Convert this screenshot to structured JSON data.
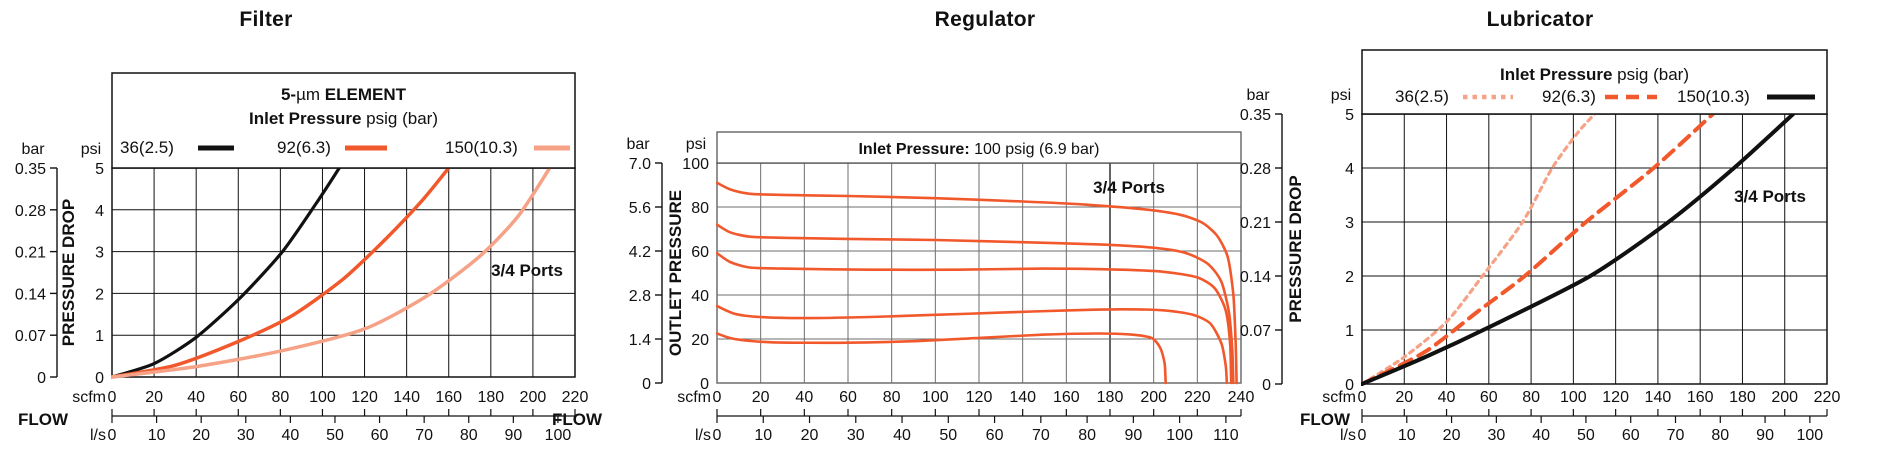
{
  "page": {
    "background": "#ffffff"
  },
  "colors": {
    "black": "#111111",
    "orange": "#F1582C",
    "salmon": "#F6A287",
    "grid_black": "#111111",
    "grid_gray": "#6E6E6E"
  },
  "chart_data": [
    {
      "type": "line",
      "title": "Filter",
      "legend": {
        "position": "top-box",
        "header_parts": [
          [
            "5-",
            "bold"
          ],
          [
            "µm",
            "regular"
          ],
          [
            " ELEMENT",
            "bold"
          ]
        ],
        "subheader_parts": [
          [
            "Inlet Pressure",
            "bold"
          ],
          [
            " psig (bar)",
            "regular"
          ]
        ],
        "entries": [
          {
            "label": "36(2.5)",
            "color": "#111111",
            "dash": "solid"
          },
          {
            "label": "92(6.3)",
            "color": "#F1582C",
            "dash": "solid"
          },
          {
            "label": "150(10.3)",
            "color": "#F6A287",
            "dash": "solid"
          }
        ]
      },
      "annotation": "3/4 Ports",
      "ylabel": "PRESSURE DROP",
      "y_left": {
        "unit": "bar",
        "ticks": [
          "0.35",
          "0.28",
          "0.21",
          "0.14",
          "0.07",
          "0"
        ]
      },
      "y_right": {
        "unit": "psi",
        "ticks": [
          "5",
          "4",
          "3",
          "2",
          "1",
          "0"
        ],
        "max": 5
      },
      "x": {
        "label": "FLOW",
        "unit_top": "scfm",
        "unit_bottom": "l/s",
        "ticks_scfm": [
          0,
          20,
          40,
          60,
          80,
          100,
          120,
          140,
          160,
          180,
          200,
          220
        ],
        "ticks_ls": [
          0,
          10,
          20,
          30,
          40,
          50,
          60,
          70,
          80,
          90,
          100
        ],
        "max_scfm": 220
      },
      "grid": {
        "color": "#111111"
      },
      "series": [
        {
          "name": "36(2.5)",
          "color": "#111111",
          "dash": "solid",
          "points": [
            [
              0,
              0
            ],
            [
              20,
              0.32
            ],
            [
              40,
              0.95
            ],
            [
              61,
              1.9
            ],
            [
              81,
              3.0
            ],
            [
              97,
              4.15
            ],
            [
              108,
              5.0
            ]
          ]
        },
        {
          "name": "92(6.3)",
          "color": "#F1582C",
          "dash": "solid",
          "points": [
            [
              0,
              0
            ],
            [
              30,
              0.28
            ],
            [
              60,
              0.85
            ],
            [
              85,
              1.45
            ],
            [
              110,
              2.35
            ],
            [
              130,
              3.3
            ],
            [
              147,
              4.2
            ],
            [
              160,
              5.0
            ]
          ]
        },
        {
          "name": "150(10.3)",
          "color": "#F6A287",
          "dash": "solid",
          "points": [
            [
              0,
              0
            ],
            [
              40,
              0.25
            ],
            [
              80,
              0.62
            ],
            [
              120,
              1.15
            ],
            [
              150,
              1.95
            ],
            [
              175,
              2.9
            ],
            [
              193,
              3.85
            ],
            [
              208,
              5.0
            ]
          ]
        }
      ]
    },
    {
      "type": "line",
      "title": "Regulator",
      "legend": {
        "position": "banner",
        "banner_parts": [
          [
            "Inlet Pressure:",
            "bold"
          ],
          [
            " 100 psig (6.9 bar)",
            "regular"
          ]
        ]
      },
      "annotation": "3/4 Ports",
      "ylabel": "OUTLET PRESSURE",
      "y_left": {
        "unit": "bar",
        "ticks": [
          "7.0",
          "5.6",
          "4.2",
          "2.8",
          "1.4",
          "0"
        ]
      },
      "y_right": {
        "unit": "psi",
        "ticks": [
          "100",
          "80",
          "60",
          "40",
          "20",
          "0"
        ],
        "max": 100
      },
      "x": {
        "label": "FLOW",
        "unit_top": "scfm",
        "unit_bottom": "l/s",
        "ticks_scfm": [
          0,
          20,
          40,
          60,
          80,
          100,
          120,
          140,
          160,
          180,
          200,
          220,
          240
        ],
        "ticks_ls": [
          0,
          10,
          20,
          30,
          40,
          50,
          60,
          70,
          80,
          90,
          100,
          110
        ],
        "max_scfm": 240
      },
      "grid": {
        "color": "#6E6E6E",
        "emphasized_x": 180
      },
      "series": [
        {
          "name": "curve-1",
          "color": "#F1582C",
          "dash": "solid",
          "points": [
            [
              0,
              91
            ],
            [
              6,
              88
            ],
            [
              15,
              86
            ],
            [
              30,
              85.5
            ],
            [
              60,
              85
            ],
            [
              100,
              84
            ],
            [
              140,
              82.5
            ],
            [
              170,
              81
            ],
            [
              195,
              79
            ],
            [
              212,
              76.5
            ],
            [
              222,
              73
            ],
            [
              229,
              67
            ],
            [
              234,
              57
            ],
            [
              236.5,
              40
            ],
            [
              237.5,
              20
            ],
            [
              238,
              0
            ]
          ]
        },
        {
          "name": "curve-2",
          "color": "#F1582C",
          "dash": "solid",
          "points": [
            [
              0,
              72
            ],
            [
              6,
              68.5
            ],
            [
              15,
              66.5
            ],
            [
              30,
              66
            ],
            [
              60,
              65.5
            ],
            [
              100,
              65
            ],
            [
              140,
              64
            ],
            [
              175,
              63
            ],
            [
              200,
              61.5
            ],
            [
              215,
              59
            ],
            [
              225,
              54
            ],
            [
              231,
              46
            ],
            [
              234.5,
              32
            ],
            [
              236,
              15
            ],
            [
              236.5,
              0
            ]
          ]
        },
        {
          "name": "curve-3",
          "color": "#F1582C",
          "dash": "solid",
          "points": [
            [
              0,
              59
            ],
            [
              6,
              55
            ],
            [
              15,
              52.5
            ],
            [
              30,
              52
            ],
            [
              70,
              51.5
            ],
            [
              110,
              51.5
            ],
            [
              150,
              52
            ],
            [
              185,
              51.5
            ],
            [
              205,
              50.5
            ],
            [
              220,
              48
            ],
            [
              228,
              43
            ],
            [
              233,
              33
            ],
            [
              235,
              18
            ],
            [
              235.5,
              0
            ]
          ]
        },
        {
          "name": "curve-4",
          "color": "#F1582C",
          "dash": "solid",
          "points": [
            [
              0,
              35
            ],
            [
              8,
              31.5
            ],
            [
              20,
              30
            ],
            [
              40,
              29.5
            ],
            [
              70,
              30
            ],
            [
              100,
              31
            ],
            [
              130,
              32
            ],
            [
              160,
              33
            ],
            [
              185,
              33.5
            ],
            [
              205,
              33
            ],
            [
              218,
              31
            ],
            [
              226,
              27
            ],
            [
              231,
              18
            ],
            [
              233,
              8
            ],
            [
              233.5,
              0
            ]
          ]
        },
        {
          "name": "curve-5",
          "color": "#F1582C",
          "dash": "solid",
          "points": [
            [
              0,
              22.5
            ],
            [
              8,
              20
            ],
            [
              25,
              18.5
            ],
            [
              60,
              18.3
            ],
            [
              90,
              19
            ],
            [
              120,
              20.5
            ],
            [
              150,
              22
            ],
            [
              175,
              22.5
            ],
            [
              190,
              22
            ],
            [
              199,
              20.5
            ],
            [
              203,
              16
            ],
            [
              205,
              9
            ],
            [
              205.5,
              0
            ]
          ]
        }
      ]
    },
    {
      "type": "line",
      "title": "Lubricator",
      "legend": {
        "position": "top-box",
        "header_parts": [
          [
            "Inlet Pressure",
            "bold"
          ],
          [
            " psig (bar)",
            "regular"
          ]
        ],
        "entries": [
          {
            "label": "36(2.5)",
            "color": "#F6A287",
            "dash": "dotted"
          },
          {
            "label": "92(6.3)",
            "color": "#F1582C",
            "dash": "dashed"
          },
          {
            "label": "150(10.3)",
            "color": "#111111",
            "dash": "solid"
          }
        ]
      },
      "annotation": "3/4 Ports",
      "ylabel": "PRESSURE DROP",
      "y_left": {
        "unit": "bar",
        "ticks": [
          "0.35",
          "0.28",
          "0.21",
          "0.14",
          "0.07",
          "0"
        ]
      },
      "y_right": {
        "unit": "psi",
        "ticks": [
          "5",
          "4",
          "3",
          "2",
          "1",
          "0"
        ],
        "max": 5
      },
      "x": {
        "label": "FLOW",
        "unit_top": "scfm",
        "unit_bottom": "l/s",
        "ticks_scfm": [
          0,
          20,
          40,
          60,
          80,
          100,
          120,
          140,
          160,
          180,
          200,
          220
        ],
        "ticks_ls": [
          0,
          10,
          20,
          30,
          40,
          50,
          60,
          70,
          80,
          90,
          100
        ],
        "max_scfm": 220
      },
      "grid": {
        "color": "#111111"
      },
      "series": [
        {
          "name": "36(2.5)",
          "color": "#F6A287",
          "dash": "dotted",
          "points": [
            [
              0,
              0
            ],
            [
              20,
              0.5
            ],
            [
              40,
              1.15
            ],
            [
              57,
              2.0
            ],
            [
              76,
              3.0
            ],
            [
              90,
              4.0
            ],
            [
              102,
              4.65
            ],
            [
              110,
              5.0
            ]
          ]
        },
        {
          "name": "92(6.3)",
          "color": "#F1582C",
          "dash": "dashed",
          "points": [
            [
              0,
              0
            ],
            [
              30,
              0.6
            ],
            [
              55,
              1.35
            ],
            [
              77,
              2.0
            ],
            [
              106,
              3.0
            ],
            [
              138,
              4.0
            ],
            [
              166,
              5.0
            ]
          ]
        },
        {
          "name": "150(10.3)",
          "color": "#111111",
          "dash": "solid",
          "points": [
            [
              0,
              0
            ],
            [
              30,
              0.5
            ],
            [
              60,
              1.05
            ],
            [
              108,
              2.0
            ],
            [
              145,
              3.0
            ],
            [
              176,
              4.0
            ],
            [
              204,
              5.0
            ]
          ]
        }
      ]
    }
  ]
}
